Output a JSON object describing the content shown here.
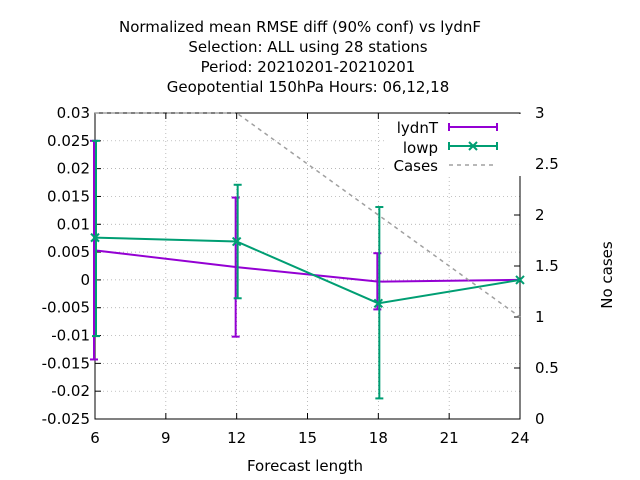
{
  "chart_data": {
    "type": "line",
    "title_lines": [
      "Normalized mean RMSE diff (90% conf) vs lydnF",
      "Selection: ALL using    28 stations",
      "Period: 20210201-20210201",
      "Geopotential 150hPa   Hours:  06,12,18"
    ],
    "xlabel": "Forecast length",
    "ylabel": "",
    "y2label": "No cases",
    "xlim": [
      6,
      24
    ],
    "ylim": [
      -0.025,
      0.03
    ],
    "y2lim": [
      0,
      3
    ],
    "x_ticks": [
      "6",
      "9",
      "12",
      "15",
      "18",
      "21",
      "24"
    ],
    "y_ticks": [
      "0.03",
      "0.025",
      "0.02",
      "0.015",
      "0.01",
      "0.005",
      "0",
      "-0.005",
      "-0.01",
      "-0.015",
      "-0.02",
      "-0.025"
    ],
    "y2_ticks": [
      "3",
      "2.5",
      "2",
      "1.5",
      "1",
      "0.5",
      "0"
    ],
    "grid": true,
    "legend_position": "top-right",
    "series": [
      {
        "name": "lydnT",
        "color": "#9400d3",
        "marker": "errorbar",
        "x": [
          6,
          12,
          18,
          24
        ],
        "y": [
          0.0053,
          0.0023,
          -0.0003,
          0.0
        ],
        "err_low": [
          -0.0143,
          -0.0102,
          -0.0053,
          0.0
        ],
        "err_high": [
          0.025,
          0.0148,
          0.0048,
          0.0
        ]
      },
      {
        "name": "lowp",
        "color": "#009e73",
        "marker": "x",
        "x": [
          6,
          12,
          18,
          24
        ],
        "y": [
          0.0076,
          0.0069,
          -0.0042,
          0.0
        ],
        "err_low": [
          -0.0101,
          -0.0033,
          -0.0213,
          0.0
        ],
        "err_high": [
          0.025,
          0.0171,
          0.0131,
          0.0
        ]
      },
      {
        "name": "Cases",
        "color": "#a0a0a0",
        "axis": "y2",
        "dashed": true,
        "x": [
          6,
          12,
          24
        ],
        "y": [
          3,
          3,
          1
        ]
      }
    ]
  }
}
